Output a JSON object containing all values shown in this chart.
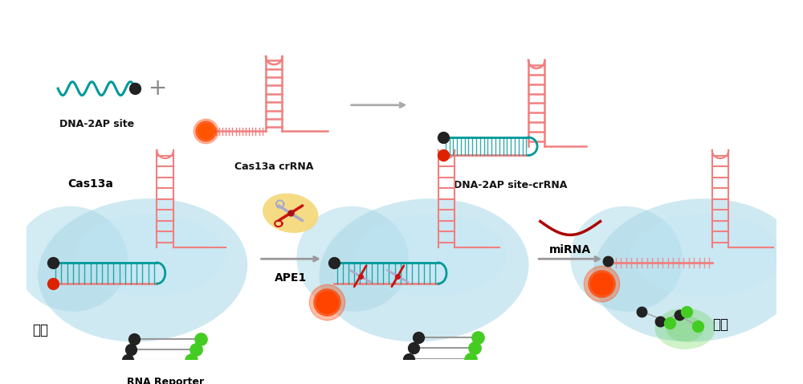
{
  "bg_color": "#ffffff",
  "teal_color": "#009999",
  "pink_color": "#F08080",
  "light_blue_blob": "#A8D8E8",
  "lighter_blue_blob": "#C0E8F5",
  "black_dot": "#222222",
  "red_dot": "#DD2200",
  "orange_dot": "#FF4400",
  "green_dot": "#44CC22",
  "gray_color": "#AAAAAA",
  "text_color": "#111111",
  "labels": {
    "dna2ap": "DNA-2AP site",
    "crrna": "Cas13a crRNA",
    "combined": "DNA-2AP site-crRNA",
    "cas13a": "Cas13a",
    "ape1": "APE1",
    "mirna": "miRNA",
    "inactivate": "失活",
    "activate": "激活",
    "reporter": "RNA Reporter"
  }
}
